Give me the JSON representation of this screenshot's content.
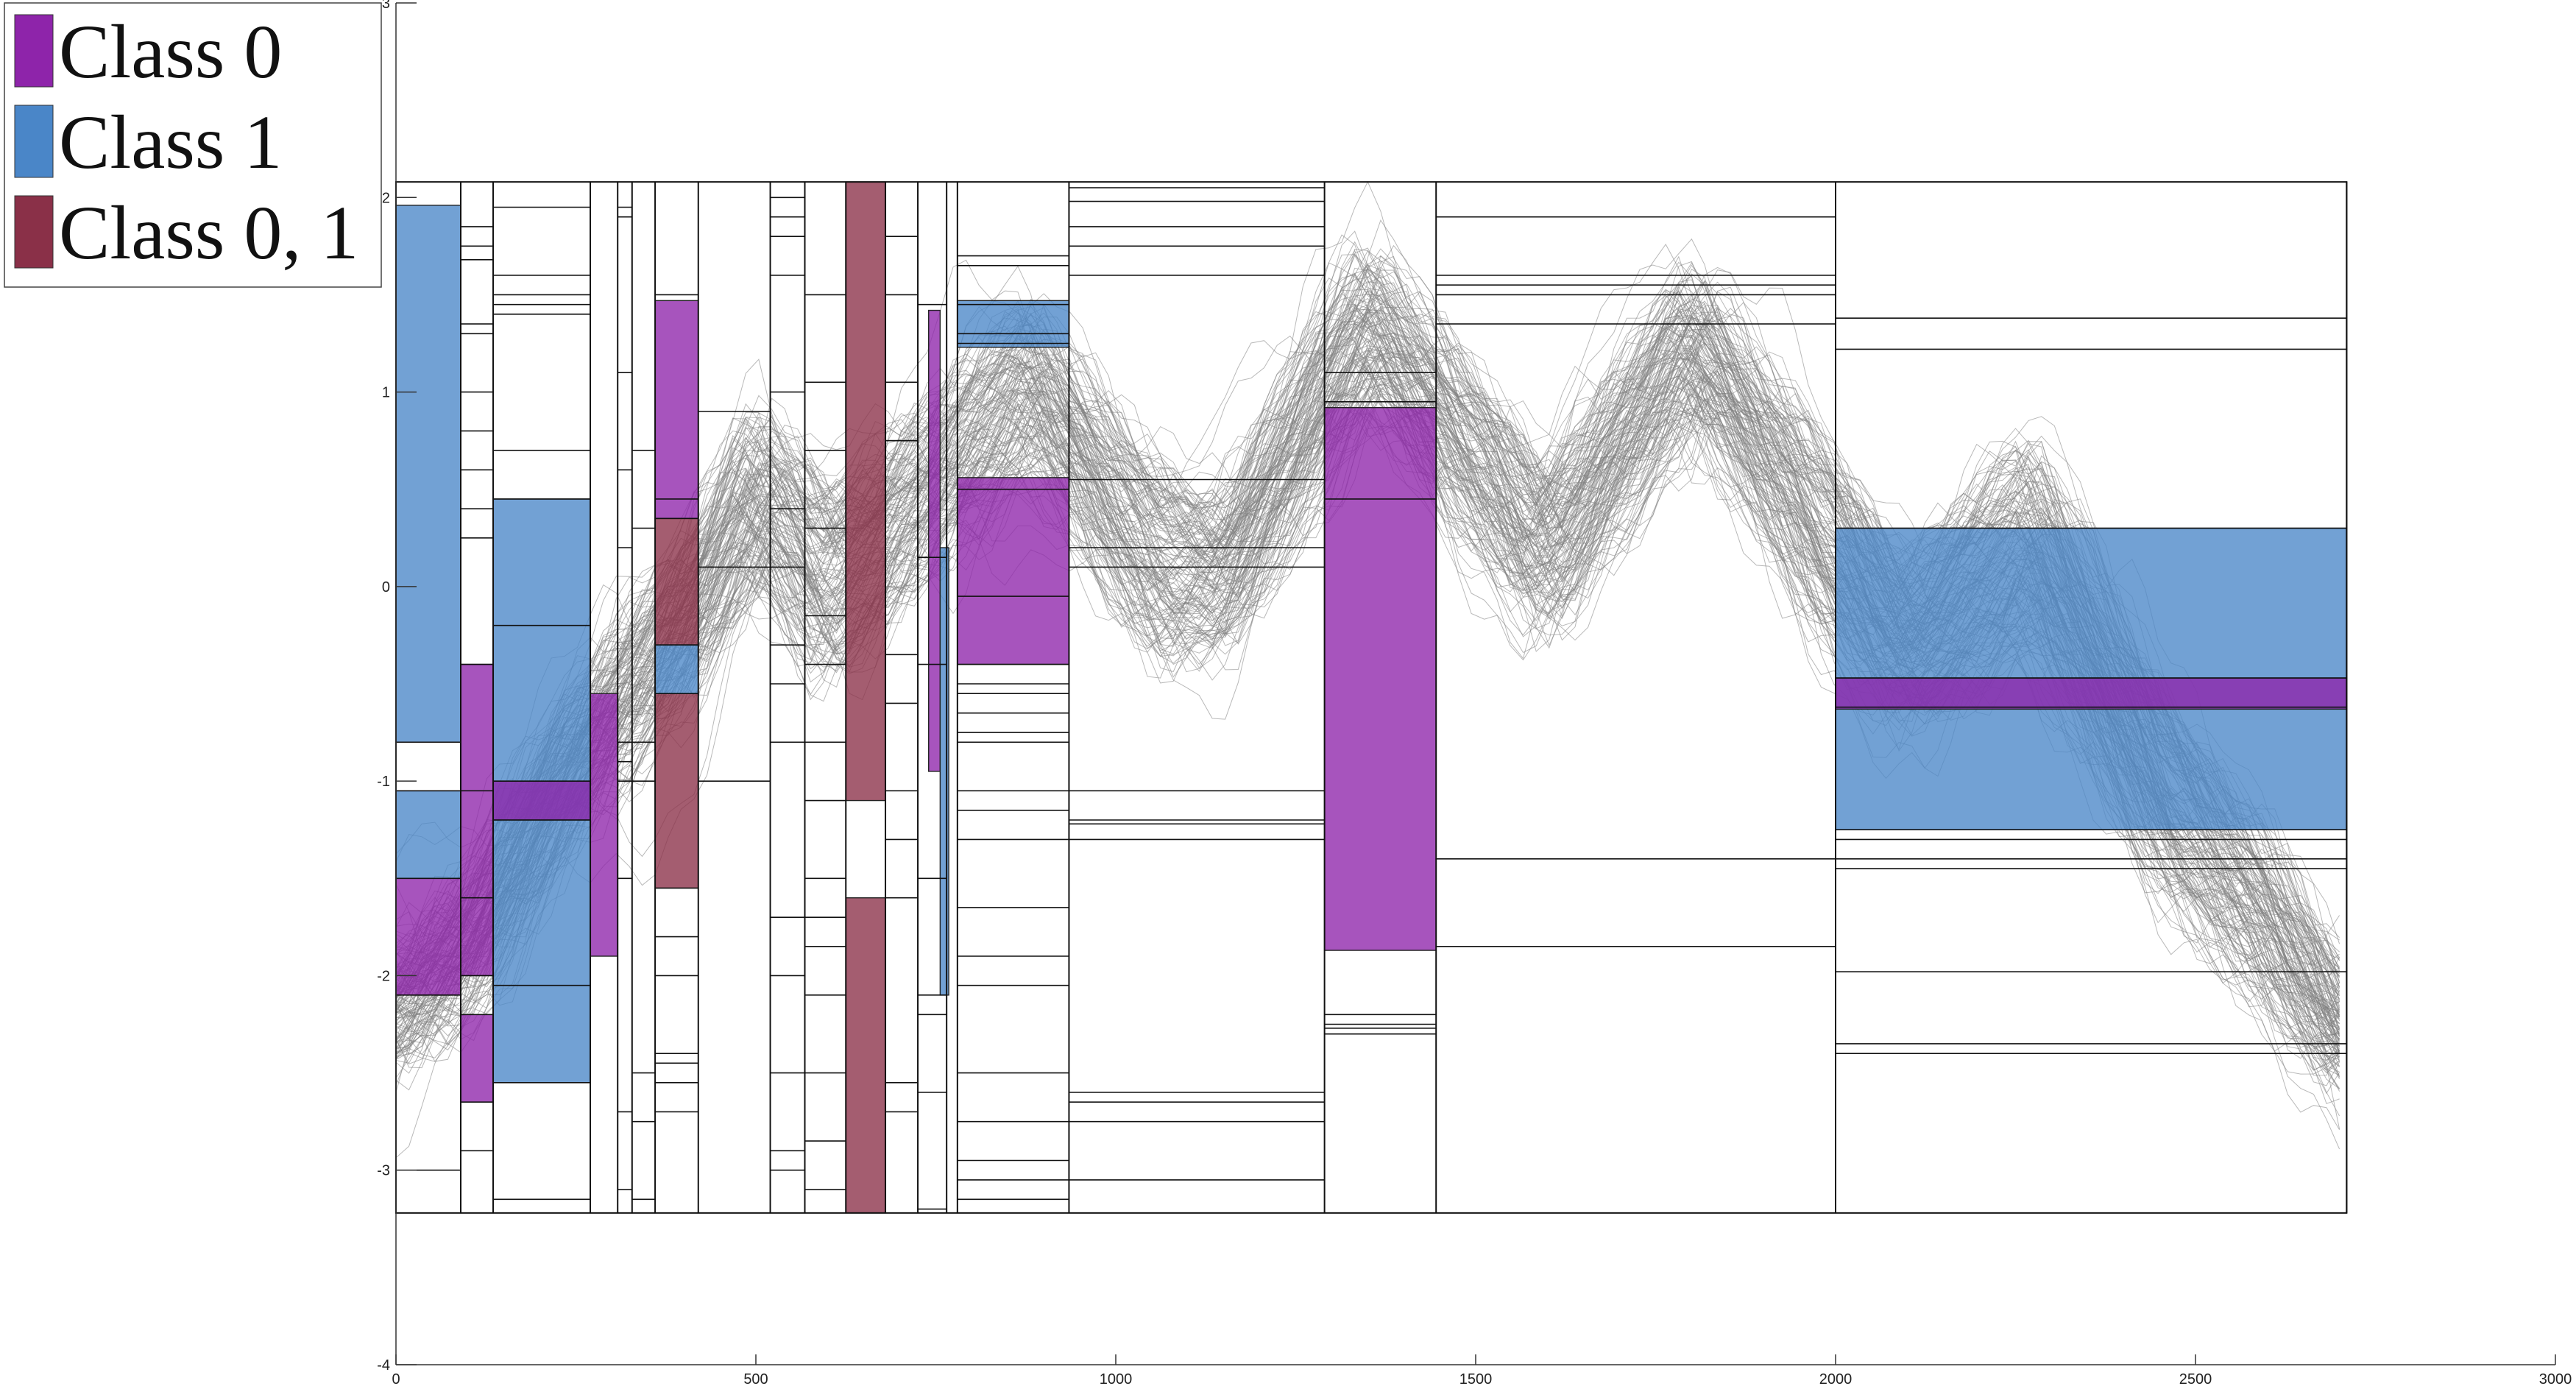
{
  "chart_data": {
    "type": "line",
    "title": "",
    "xlabel": "",
    "ylabel": "",
    "xlim": [
      0,
      3000
    ],
    "ylim": [
      -4,
      3
    ],
    "x_ticks": [
      0,
      500,
      1000,
      1500,
      2000,
      2500,
      3000
    ],
    "y_ticks": [
      -4,
      -3,
      -2,
      -1,
      0,
      1,
      2,
      3
    ],
    "x_tick_labels": [
      "0",
      "500",
      "1000",
      "1500",
      "2000",
      "2500",
      "3000"
    ],
    "y_tick_labels": [
      "-4",
      "-3",
      "-2",
      "-1",
      "0",
      "1",
      "2",
      "3"
    ],
    "series_color": "#808080",
    "series_description": "many overlapping gray time-series curves",
    "envelope": [
      {
        "x": 0,
        "lo": -2.45,
        "hi": -1.9
      },
      {
        "x": 100,
        "lo": -2.15,
        "hi": -1.55
      },
      {
        "x": 250,
        "lo": -1.2,
        "hi": -0.55
      },
      {
        "x": 420,
        "lo": -0.4,
        "hi": 0.25
      },
      {
        "x": 500,
        "lo": 0.1,
        "hi": 0.9
      },
      {
        "x": 600,
        "lo": -0.45,
        "hi": 0.45
      },
      {
        "x": 700,
        "lo": -0.05,
        "hi": 0.75
      },
      {
        "x": 880,
        "lo": 0.7,
        "hi": 1.45
      },
      {
        "x": 1050,
        "lo": -0.3,
        "hi": 0.6
      },
      {
        "x": 1150,
        "lo": -0.3,
        "hi": 0.4
      },
      {
        "x": 1350,
        "lo": 1.0,
        "hi": 1.75
      },
      {
        "x": 1600,
        "lo": -0.2,
        "hi": 0.55
      },
      {
        "x": 1800,
        "lo": 0.9,
        "hi": 1.6
      },
      {
        "x": 2000,
        "lo": -0.25,
        "hi": 0.6
      },
      {
        "x": 2100,
        "lo": -0.7,
        "hi": 0.1
      },
      {
        "x": 2270,
        "lo": -0.25,
        "hi": 0.75
      },
      {
        "x": 2450,
        "lo": -1.5,
        "hi": -0.6
      },
      {
        "x": 2600,
        "lo": -2.1,
        "hi": -1.3
      },
      {
        "x": 2700,
        "lo": -2.5,
        "hi": -2.05
      }
    ],
    "outer_frame": {
      "x0": 0,
      "x1": 2710,
      "y0": -3.22,
      "y1": 2.08
    },
    "column_boundaries": [
      0,
      90,
      135,
      270,
      308,
      328,
      360,
      420,
      520,
      568,
      625,
      680,
      725,
      765,
      780,
      935,
      1290,
      1445,
      2000,
      2710
    ],
    "cut_lines": [
      {
        "x0": 0,
        "x1": 90,
        "y": [
          -0.8,
          -1.05,
          -1.5,
          -2.1,
          -3.0
        ]
      },
      {
        "x0": 90,
        "x1": 135,
        "y": [
          1.85,
          1.75,
          1.68,
          1.35,
          1.3,
          1.0,
          0.8,
          0.6,
          0.4,
          0.25,
          -0.4,
          -1.05,
          -1.6,
          -2.0,
          -2.2,
          -2.65,
          -2.9
        ]
      },
      {
        "x0": 135,
        "x1": 270,
        "y": [
          1.95,
          1.6,
          1.5,
          1.45,
          1.4,
          0.7,
          0.45,
          -0.2,
          -1.0,
          -1.2,
          -2.05,
          -2.55,
          -3.15
        ]
      },
      {
        "x0": 308,
        "x1": 328,
        "y": [
          1.95,
          1.9,
          1.1,
          0.6,
          0.2,
          -0.8,
          -0.9,
          -1.0,
          -1.5,
          -2.7,
          -3.1
        ]
      },
      {
        "x0": 328,
        "x1": 360,
        "y": [
          0.7,
          0.3,
          -0.8,
          -1.0,
          -2.5,
          -2.75,
          -3.15
        ]
      },
      {
        "x0": 360,
        "x1": 420,
        "y": [
          1.5,
          0.45,
          0.35,
          -0.3,
          -0.55,
          -1.55,
          -1.8,
          -2.0,
          -2.4,
          -2.45,
          -2.55,
          -2.7
        ]
      },
      {
        "x0": 420,
        "x1": 520,
        "y": [
          0.9,
          0.1,
          -1.0
        ]
      },
      {
        "x0": 520,
        "x1": 568,
        "y": [
          2.0,
          1.9,
          1.8,
          1.6,
          1.0,
          0.4,
          0.1,
          -0.3,
          -0.5,
          -0.8,
          -1.7,
          -2.0,
          -2.5,
          -2.9,
          -3.0
        ]
      },
      {
        "x0": 568,
        "x1": 625,
        "y": [
          1.5,
          1.05,
          0.7,
          0.3,
          -0.15,
          -0.4,
          -0.8,
          -1.1,
          -1.5,
          -1.7,
          -1.85,
          -2.1,
          -2.5,
          -2.85,
          -3.1
        ]
      },
      {
        "x0": 680,
        "x1": 725,
        "y": [
          1.8,
          1.5,
          1.05,
          0.75,
          0.75,
          -0.35,
          -0.6,
          -1.05,
          -1.3,
          -1.6,
          -2.55,
          -2.7
        ]
      },
      {
        "x0": 725,
        "x1": 765,
        "y": [
          1.45,
          0.15,
          -0.4,
          -1.5,
          -2.1,
          -2.2,
          -2.6,
          -3.2
        ]
      },
      {
        "x0": 780,
        "x1": 935,
        "y": [
          1.7,
          1.65,
          1.45,
          1.3,
          1.25,
          0.5,
          -0.05,
          -0.4,
          -0.5,
          -0.55,
          -0.65,
          -0.75,
          -0.8,
          -1.05,
          -1.15,
          -1.3,
          -1.65,
          -1.9,
          -2.05,
          -2.5,
          -2.75,
          -2.95,
          -3.05,
          -3.15
        ]
      },
      {
        "x0": 935,
        "x1": 1290,
        "y": [
          2.05,
          1.98,
          1.85,
          1.75,
          1.6,
          0.55,
          0.2,
          0.1,
          -1.05,
          -1.2,
          -1.22,
          -1.3,
          -2.6,
          -2.65,
          -2.75,
          -3.05
        ]
      },
      {
        "x0": 1290,
        "x1": 1445,
        "y": [
          1.1,
          0.95,
          0.45,
          -2.2,
          -2.25,
          -2.27,
          -2.3
        ]
      },
      {
        "x0": 1445,
        "x1": 2000,
        "y": [
          1.9,
          1.6,
          1.55,
          1.5,
          1.35,
          -1.4,
          -1.85
        ]
      },
      {
        "x0": 2000,
        "x1": 2710,
        "y": [
          1.38,
          1.22,
          0.3,
          -0.47,
          -0.62,
          -1.25,
          -1.3,
          -1.4,
          -1.45,
          -1.98,
          -2.35,
          -2.4
        ]
      }
    ],
    "boxes": [
      {
        "class": "Class 1",
        "x0": 0,
        "x1": 90,
        "y0": -0.8,
        "y1": 1.96
      },
      {
        "class": "Class 1",
        "x0": 0,
        "x1": 90,
        "y0": -1.5,
        "y1": -1.05
      },
      {
        "class": "Class 0",
        "x0": 0,
        "x1": 90,
        "y0": -2.1,
        "y1": -1.5
      },
      {
        "class": "Class 0",
        "x0": 90,
        "x1": 135,
        "y0": -2.0,
        "y1": -0.4
      },
      {
        "class": "Class 0",
        "x0": 90,
        "x1": 135,
        "y0": -2.65,
        "y1": -2.2
      },
      {
        "class": "Class 1",
        "x0": 135,
        "x1": 270,
        "y0": -2.55,
        "y1": 0.45
      },
      {
        "class": "Class 0",
        "x0": 135,
        "x1": 270,
        "y0": -1.2,
        "y1": -1.0
      },
      {
        "class": "Class 0",
        "x0": 270,
        "x1": 308,
        "y0": -1.9,
        "y1": -0.55
      },
      {
        "class": "Class 0",
        "x0": 360,
        "x1": 420,
        "y0": 0.35,
        "y1": 1.47
      },
      {
        "class": "Class 0, 1",
        "x0": 360,
        "x1": 420,
        "y0": -0.3,
        "y1": 0.35
      },
      {
        "class": "Class 1",
        "x0": 360,
        "x1": 420,
        "y0": -0.55,
        "y1": -0.3
      },
      {
        "class": "Class 0, 1",
        "x0": 360,
        "x1": 420,
        "y0": -1.55,
        "y1": -0.55
      },
      {
        "class": "Class 0, 1",
        "x0": 625,
        "x1": 680,
        "y0": -1.1,
        "y1": 2.08
      },
      {
        "class": "Class 0, 1",
        "x0": 625,
        "x1": 680,
        "y0": -3.22,
        "y1": -1.6
      },
      {
        "class": "Class 0",
        "x0": 740,
        "x1": 756,
        "y0": -0.95,
        "y1": 1.42
      },
      {
        "class": "Class 1",
        "x0": 756,
        "x1": 768,
        "y0": -2.1,
        "y1": 0.2
      },
      {
        "class": "Class 1",
        "x0": 780,
        "x1": 935,
        "y0": 1.23,
        "y1": 1.47
      },
      {
        "class": "Class 0",
        "x0": 780,
        "x1": 935,
        "y0": -0.4,
        "y1": 0.56
      },
      {
        "class": "Class 0",
        "x0": 1290,
        "x1": 1445,
        "y0": -1.87,
        "y1": 0.92
      },
      {
        "class": "Class 1",
        "x0": 2000,
        "x1": 2710,
        "y0": -1.25,
        "y1": 0.3
      },
      {
        "class": "Class 0",
        "x0": 2000,
        "x1": 2710,
        "y0": -0.63,
        "y1": -0.47
      }
    ],
    "legend": {
      "position": "top-left",
      "entries": [
        {
          "label": "Class 0",
          "color": "#8E24AA"
        },
        {
          "label": "Class 1",
          "color": "#4A86C8"
        },
        {
          "label": "Class 0, 1",
          "color": "#8A3048"
        }
      ]
    },
    "grid": false
  }
}
